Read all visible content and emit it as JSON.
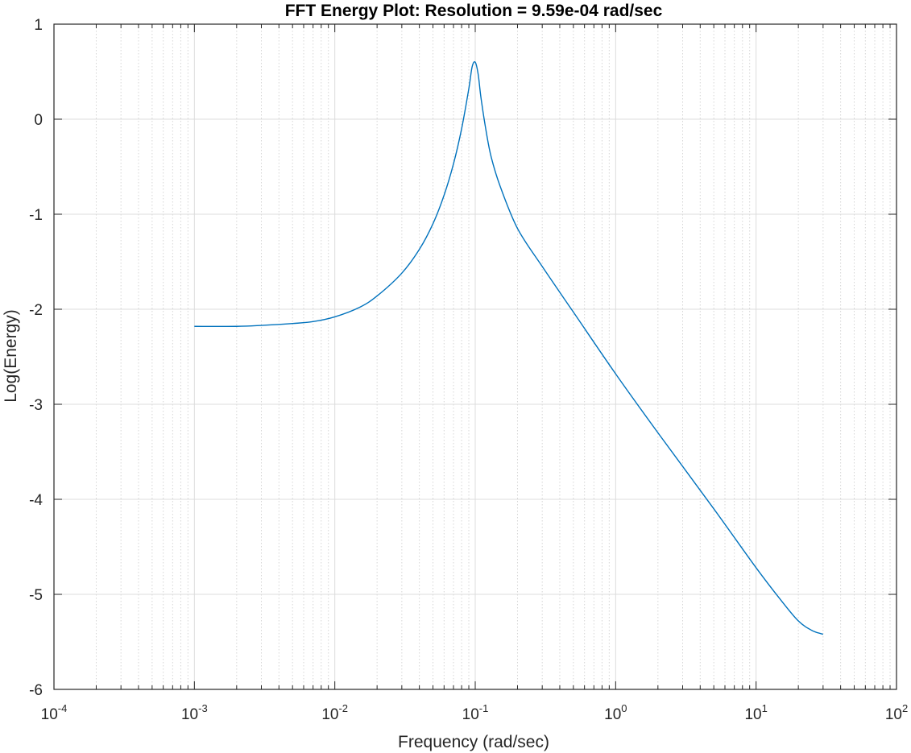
{
  "chart_data": {
    "type": "line",
    "title": "FFT Energy Plot: Resolution =   9.59e-04 rad/sec",
    "xlabel": "Frequency (rad/sec)",
    "ylabel": "Log(Energy)",
    "x_scale": "log",
    "xlim": [
      0.0001,
      100
    ],
    "ylim": [
      -6,
      1
    ],
    "x_ticks": [
      {
        "base": "10",
        "exp": "-4",
        "value": 0.0001
      },
      {
        "base": "10",
        "exp": "-3",
        "value": 0.001
      },
      {
        "base": "10",
        "exp": "-2",
        "value": 0.01
      },
      {
        "base": "10",
        "exp": "-1",
        "value": 0.1
      },
      {
        "base": "10",
        "exp": "0",
        "value": 1
      },
      {
        "base": "10",
        "exp": "1",
        "value": 10
      },
      {
        "base": "10",
        "exp": "2",
        "value": 100
      }
    ],
    "y_ticks": [
      {
        "label": "1",
        "value": 1
      },
      {
        "label": "0",
        "value": 0
      },
      {
        "label": "-1",
        "value": -1
      },
      {
        "label": "-2",
        "value": -2
      },
      {
        "label": "-3",
        "value": -3
      },
      {
        "label": "-4",
        "value": -4
      },
      {
        "label": "-5",
        "value": -5
      },
      {
        "label": "-6",
        "value": -6
      }
    ],
    "grid": true,
    "minor_grid": true,
    "color": "#0072BD",
    "series": [
      {
        "x": [
          0.001,
          0.002,
          0.003,
          0.005,
          0.007,
          0.01,
          0.015,
          0.02,
          0.03,
          0.04,
          0.05,
          0.06,
          0.07,
          0.08,
          0.09,
          0.095,
          0.1,
          0.105,
          0.11,
          0.12,
          0.13,
          0.15,
          0.2,
          0.3,
          0.5,
          1,
          2,
          5,
          10,
          15,
          20,
          25,
          30
        ],
        "y": [
          -2.18,
          -2.18,
          -2.17,
          -2.15,
          -2.13,
          -2.08,
          -1.98,
          -1.86,
          -1.62,
          -1.37,
          -1.1,
          -0.8,
          -0.47,
          -0.1,
          0.32,
          0.55,
          0.6,
          0.47,
          0.22,
          -0.14,
          -0.4,
          -0.7,
          -1.15,
          -1.55,
          -2.03,
          -2.68,
          -3.3,
          -4.1,
          -4.72,
          -5.06,
          -5.28,
          -5.38,
          -5.42
        ]
      }
    ]
  }
}
